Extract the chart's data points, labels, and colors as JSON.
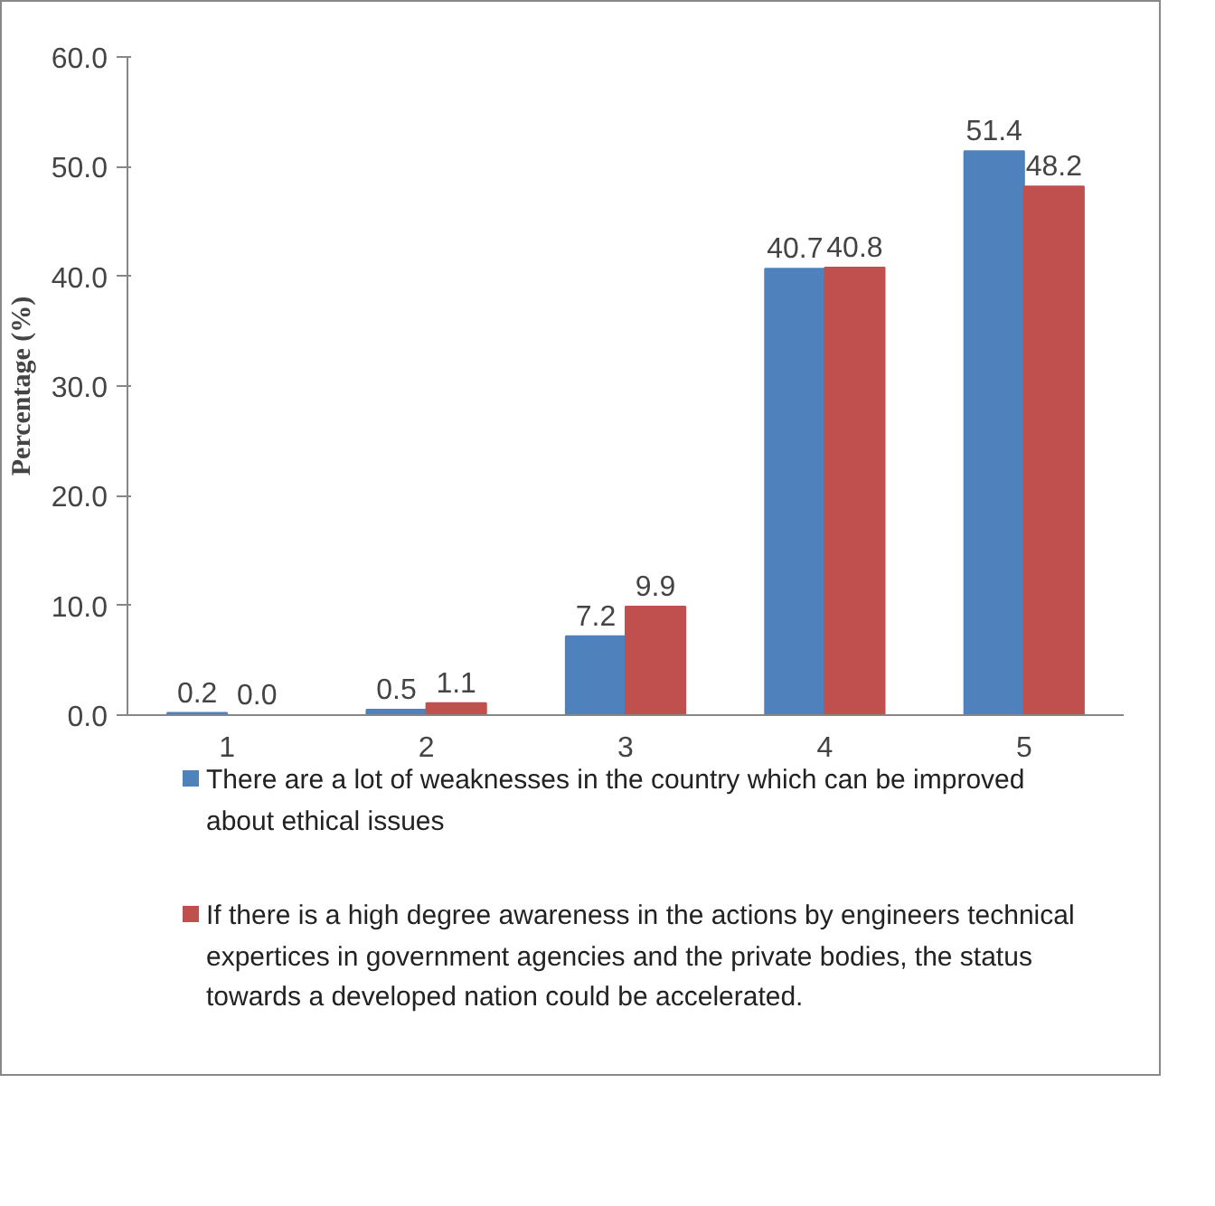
{
  "chart_data": {
    "type": "bar",
    "ylabel": "Percentage (%)",
    "categories": [
      "1",
      "2",
      "3",
      "4",
      "5"
    ],
    "series": [
      {
        "name": "There are a lot of weaknesses in the country which can be improved about ethical issues",
        "color": "#4f81bd",
        "values": [
          0.2,
          0.5,
          7.2,
          40.7,
          51.4
        ],
        "value_labels": [
          "0.2",
          "0.5",
          "7.2",
          "40.7",
          "51.4"
        ]
      },
      {
        "name": "If there is a high degree awareness in the actions by engineers technical expertices in  government agencies and the private bodies, the status towards a developed nation could be accelerated.",
        "color": "#c0504d",
        "values": [
          0.0,
          1.1,
          9.9,
          40.8,
          48.2
        ],
        "value_labels": [
          "0.0",
          "1.1",
          "9.9",
          "40.8",
          "48.2"
        ]
      }
    ],
    "ylim": [
      0,
      60
    ],
    "yticks": [
      {
        "value": 0,
        "label": "0.0"
      },
      {
        "value": 10,
        "label": "10.0"
      },
      {
        "value": 20,
        "label": "20.0"
      },
      {
        "value": 30,
        "label": "30.0"
      },
      {
        "value": 40,
        "label": "40.0"
      },
      {
        "value": 50,
        "label": "50.0"
      },
      {
        "value": 60,
        "label": "60.0"
      }
    ],
    "grid": false,
    "legend": "bottom"
  }
}
